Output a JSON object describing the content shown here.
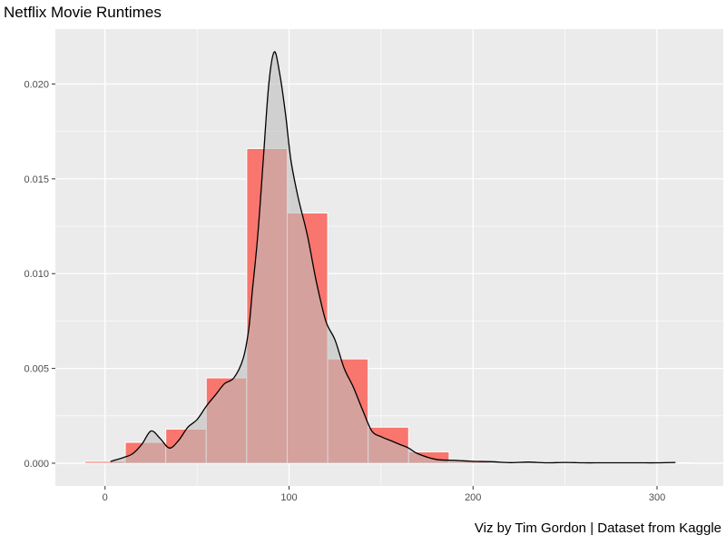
{
  "chart_data": {
    "type": "bar",
    "title": "Netflix Movie Runtimes",
    "caption": "Viz by Tim Gordon | Dataset from Kaggle",
    "xlabel": "",
    "ylabel": "",
    "xlim": [
      -27,
      336
    ],
    "ylim": [
      -0.0012,
      0.0229
    ],
    "x_ticks": [
      0,
      100,
      200,
      300
    ],
    "x_tick_labels": [
      "0",
      "100",
      "200",
      "300"
    ],
    "y_ticks": [
      0.0,
      0.005,
      0.01,
      0.015,
      0.02
    ],
    "y_tick_labels": [
      "0.000",
      "0.005",
      "0.010",
      "0.015",
      "0.020"
    ],
    "grid": true,
    "bin_width": 22,
    "histogram": [
      {
        "x0": -11,
        "x1": 11,
        "density": 0.0001
      },
      {
        "x0": 11,
        "x1": 33,
        "density": 0.0011
      },
      {
        "x0": 33,
        "x1": 55,
        "density": 0.0018
      },
      {
        "x0": 55,
        "x1": 77,
        "density": 0.0045
      },
      {
        "x0": 77,
        "x1": 99,
        "density": 0.0166
      },
      {
        "x0": 99,
        "x1": 121,
        "density": 0.0132
      },
      {
        "x0": 121,
        "x1": 143,
        "density": 0.0055
      },
      {
        "x0": 143,
        "x1": 165,
        "density": 0.0019
      },
      {
        "x0": 165,
        "x1": 187,
        "density": 0.0006
      },
      {
        "x0": 187,
        "x1": 209,
        "density": 0.0001
      },
      {
        "x0": 209,
        "x1": 231,
        "density": 5e-05
      },
      {
        "x0": 231,
        "x1": 253,
        "density": 3e-05
      },
      {
        "x0": 253,
        "x1": 275,
        "density": 2e-05
      },
      {
        "x0": 275,
        "x1": 297,
        "density": 1e-05
      },
      {
        "x0": 297,
        "x1": 319,
        "density": 2e-05
      }
    ],
    "density_curve": {
      "x": [
        3,
        10,
        15,
        20,
        25,
        30,
        35,
        40,
        45,
        50,
        55,
        60,
        65,
        70,
        75,
        78,
        80,
        83,
        86,
        89,
        92,
        95,
        98,
        101,
        105,
        110,
        115,
        120,
        125,
        130,
        135,
        140,
        145,
        150,
        155,
        160,
        165,
        170,
        180,
        190,
        200,
        210,
        220,
        230,
        240,
        250,
        260,
        270,
        280,
        290,
        300,
        310
      ],
      "y": [
        0.0001,
        0.0003,
        0.0005,
        0.001,
        0.0017,
        0.0013,
        0.0008,
        0.0012,
        0.0019,
        0.0023,
        0.003,
        0.0036,
        0.0042,
        0.0045,
        0.0055,
        0.007,
        0.009,
        0.012,
        0.016,
        0.02,
        0.0217,
        0.0205,
        0.0185,
        0.016,
        0.014,
        0.012,
        0.0095,
        0.0075,
        0.0065,
        0.005,
        0.004,
        0.0028,
        0.0017,
        0.0014,
        0.0012,
        0.001,
        0.0008,
        0.0005,
        0.0002,
        0.00015,
        0.0001,
        8e-05,
        3e-05,
        6e-05,
        2e-05,
        4e-05,
        2e-05,
        2e-05,
        2e-05,
        2e-05,
        2e-05,
        4e-05
      ]
    },
    "colors": {
      "panel_background": "#ebebeb",
      "grid": "#ffffff",
      "bar_fill": "#f8766d",
      "bar_outline": "#ffffff",
      "density_fill": "#bebebe",
      "density_line": "#000000"
    }
  }
}
